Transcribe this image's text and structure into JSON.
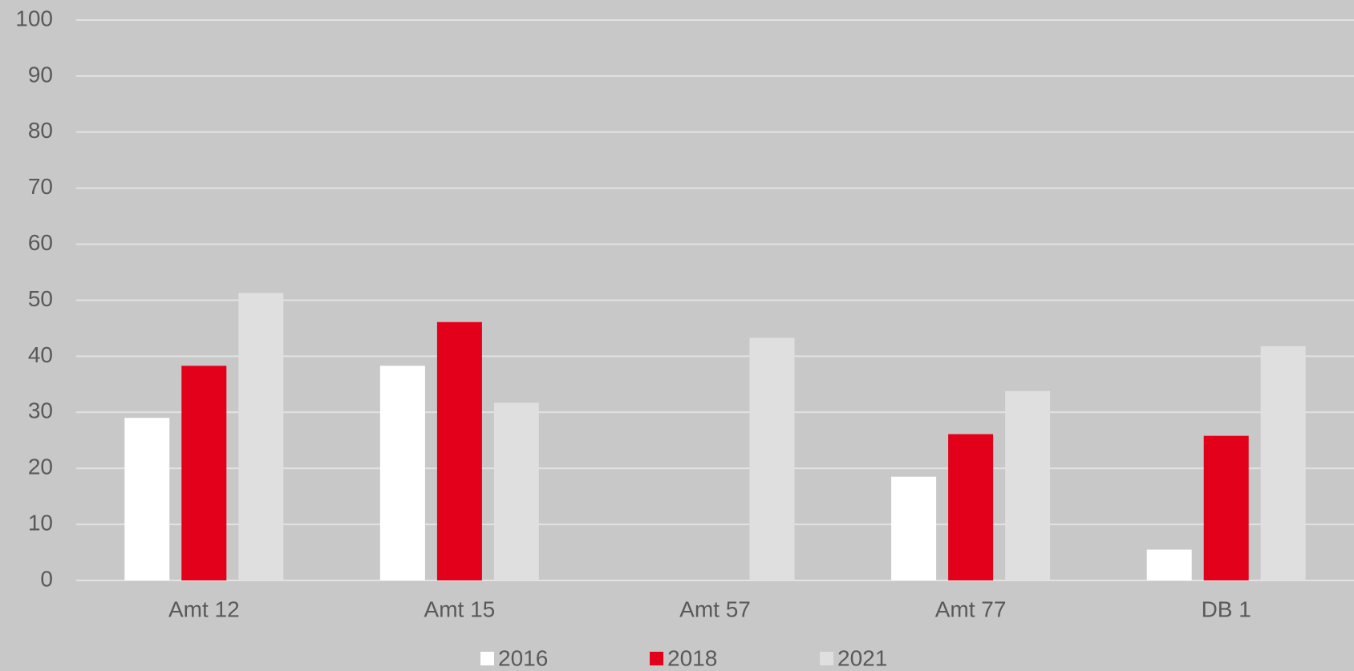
{
  "chart_data": {
    "type": "bar",
    "categories": [
      "Amt 12",
      "Amt 15",
      "Amt 57",
      "Amt 77",
      "DB 1"
    ],
    "series": [
      {
        "name": "2016",
        "color": "#ffffff",
        "values": [
          29,
          38.3,
          null,
          18.5,
          5.5
        ]
      },
      {
        "name": "2018",
        "color": "#e2001a",
        "values": [
          38.3,
          46.1,
          null,
          26.1,
          25.8
        ]
      },
      {
        "name": "2021",
        "color": "#dfdfdf",
        "values": [
          51.3,
          31.7,
          43.3,
          33.8,
          41.8
        ]
      }
    ],
    "ylim": [
      0,
      100
    ],
    "yticks": [
      0,
      10,
      20,
      30,
      40,
      50,
      60,
      70,
      80,
      90,
      100
    ],
    "grid": true,
    "legend": "bottom"
  }
}
